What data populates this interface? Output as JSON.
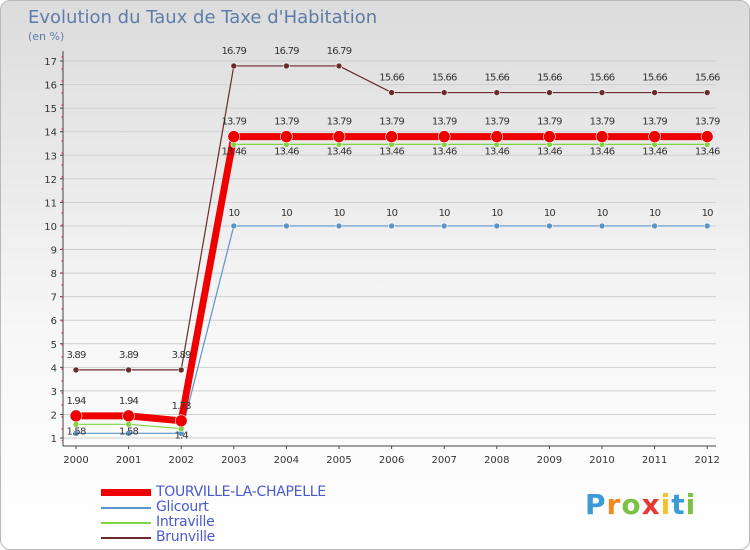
{
  "chart_data": {
    "type": "line",
    "title": "Evolution du Taux de Taxe d'Habitation",
    "ylabel": "(en %)",
    "xlabel": "",
    "ylim": [
      1,
      17
    ],
    "yticks": [
      "1",
      "2",
      "3",
      "4",
      "5",
      "6",
      "7",
      "8",
      "9",
      "10",
      "11",
      "12",
      "13",
      "14",
      "15",
      "16",
      "17"
    ],
    "categories": [
      "2000",
      "2001",
      "2002",
      "2003",
      "2004",
      "2005",
      "2006",
      "2007",
      "2008",
      "2009",
      "2010",
      "2011",
      "2012"
    ],
    "series": [
      {
        "name": "Brunville",
        "color": "#6b2b2b",
        "values": [
          3.89,
          3.89,
          3.89,
          16.79,
          16.79,
          16.79,
          15.66,
          15.66,
          15.66,
          15.66,
          15.66,
          15.66,
          15.66
        ],
        "labels": [
          "3.89",
          "3.89",
          "3.89",
          "16.79",
          "16.79",
          "16.79",
          "15.66",
          "15.66",
          "15.66",
          "15.66",
          "15.66",
          "15.66",
          "15.66"
        ]
      },
      {
        "name": "Glicourt",
        "color": "#5a95c9",
        "values": [
          1.2,
          1.2,
          1.2,
          10,
          10,
          10,
          10,
          10,
          10,
          10,
          10,
          10,
          10
        ],
        "labels": [
          "",
          "",
          "",
          "10",
          "10",
          "10",
          "10",
          "10",
          "10",
          "10",
          "10",
          "10",
          "10"
        ]
      },
      {
        "name": "Intraville",
        "color": "#7fd444",
        "values": [
          1.58,
          1.58,
          1.4,
          13.46,
          13.46,
          13.46,
          13.46,
          13.46,
          13.46,
          13.46,
          13.46,
          13.46,
          13.46
        ],
        "labels": [
          "1.58",
          "1.58",
          "1.4",
          "13.46",
          "13.46",
          "13.46",
          "13.46",
          "13.46",
          "13.46",
          "13.46",
          "13.46",
          "13.46",
          "13.46"
        ]
      },
      {
        "name": "TOURVILLE-LA-CHAPELLE",
        "color": "#ee0000",
        "values": [
          1.94,
          1.94,
          1.73,
          13.79,
          13.79,
          13.79,
          13.79,
          13.79,
          13.79,
          13.79,
          13.79,
          13.79,
          13.79
        ],
        "labels": [
          "1.94",
          "1.94",
          "1.73",
          "13.79",
          "13.79",
          "13.79",
          "13.79",
          "13.79",
          "13.79",
          "13.79",
          "13.79",
          "13.79",
          "13.79"
        ]
      }
    ],
    "legend": [
      {
        "name": "TOURVILLE-LA-CHAPELLE",
        "color": "#ee0000"
      },
      {
        "name": "Glicourt",
        "color": "#5a95c9"
      },
      {
        "name": "Intraville",
        "color": "#7fd444"
      },
      {
        "name": "Brunville",
        "color": "#6b2b2b"
      }
    ]
  },
  "logo": {
    "letters": [
      "P",
      "r",
      "o",
      "x",
      "i",
      "t",
      "i"
    ],
    "colors": [
      "#3b9bd6",
      "#f08a24",
      "#7cc242",
      "#e53935",
      "#f6c12b",
      "#3b9bd6",
      "#7cc242"
    ]
  }
}
